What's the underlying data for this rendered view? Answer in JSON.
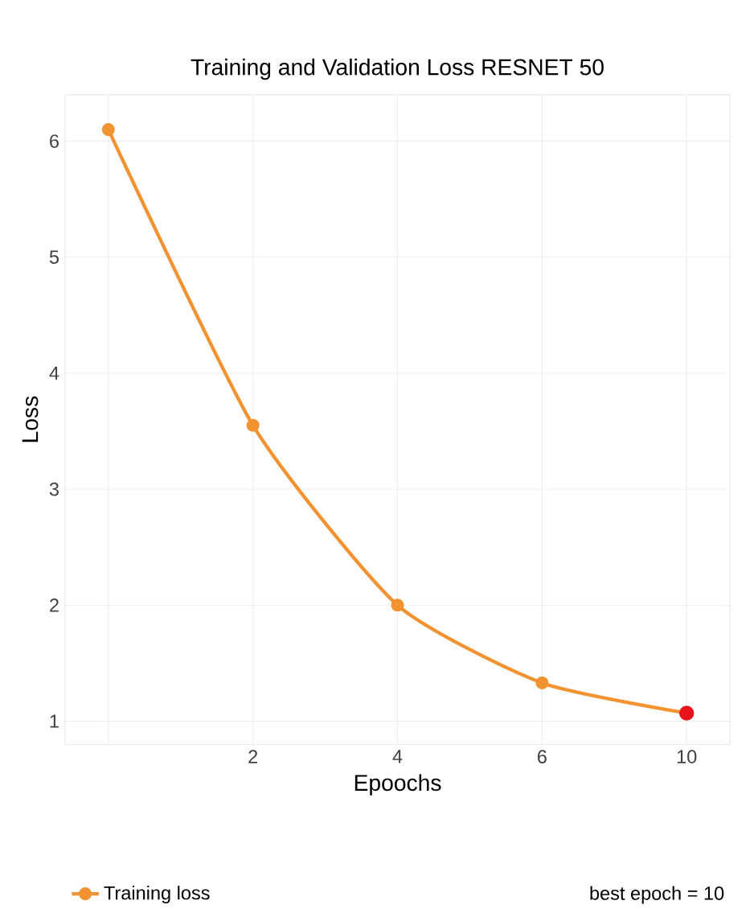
{
  "chart_data": {
    "type": "line",
    "title": "Training and Validation Loss RESNET 50",
    "xlabel": "Epoochs",
    "ylabel": "Loss",
    "categories": [
      null,
      "2",
      "4",
      "6",
      "10"
    ],
    "series": [
      {
        "name": "Training loss",
        "color": "#f39230",
        "values": [
          6.1,
          3.55,
          2.0,
          1.33,
          1.07
        ],
        "marker": "circle"
      },
      {
        "type": "scatter",
        "color": "#e8141a",
        "values": [
          null,
          null,
          null,
          null,
          1.07
        ],
        "marker": "circle"
      }
    ],
    "ylim": [
      0.8,
      6.4
    ],
    "yticks": [
      1,
      2,
      3,
      4,
      5,
      6
    ],
    "grid": true,
    "legend": "bottom",
    "annotations": [
      "best epoch = 10"
    ]
  }
}
